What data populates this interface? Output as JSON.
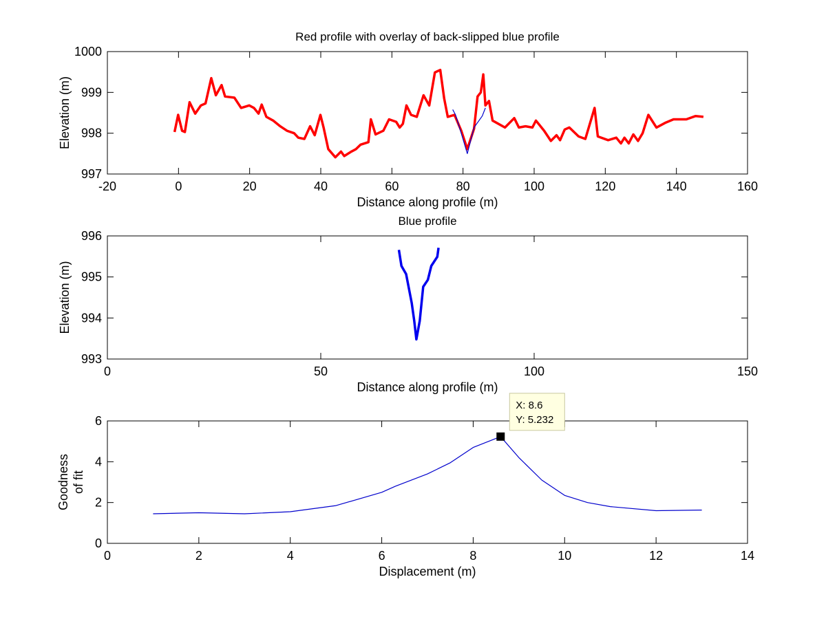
{
  "chart_data": [
    {
      "type": "line",
      "title": "Red profile with overlay of back-slipped blue profile",
      "xlabel": "Distance along profile (m)",
      "ylabel": "Elevation (m)",
      "xlim": [
        -20,
        160
      ],
      "ylim": [
        997,
        1000
      ],
      "xticks": [
        -20,
        0,
        20,
        40,
        60,
        80,
        100,
        120,
        140,
        160
      ],
      "yticks": [
        997,
        998,
        999,
        1000
      ],
      "grid": false,
      "series": [
        {
          "name": "red profile",
          "color": "#ff0000",
          "x": [
            -1.1,
            -0.1,
            1.0,
            1.8,
            3.1,
            4.7,
            6.3,
            7.6,
            9.2,
            10.5,
            12.1,
            13.1,
            15.7,
            17.6,
            19.9,
            21.2,
            22.5,
            23.4,
            24.7,
            26.6,
            28.6,
            30.5,
            32.5,
            33.7,
            35.4,
            37.0,
            38.3,
            39.9,
            40.8,
            42.1,
            44.1,
            45.7,
            46.6,
            48.6,
            49.9,
            51.2,
            53.4,
            54.1,
            55.4,
            57.6,
            59.2,
            61.2,
            62.2,
            63.1,
            64.1,
            65.4,
            67.0,
            68.9,
            70.5,
            72.1,
            73.6,
            74.7,
            75.7,
            77.6,
            79.5,
            81.2,
            83.1,
            84.1,
            85.0,
            85.7,
            86.3,
            87.3,
            88.3,
            91.8,
            94.4,
            95.7,
            97.6,
            99.5,
            100.5,
            102.8,
            104.7,
            106.3,
            107.3,
            108.6,
            109.9,
            112.5,
            114.4,
            117.0,
            117.9,
            120.8,
            123.1,
            124.4,
            125.4,
            126.6,
            127.9,
            129.2,
            130.5,
            132.1,
            134.4,
            137.0,
            139.2,
            142.8,
            145.4,
            147.6
          ],
          "y": [
            998.03,
            998.45,
            998.06,
            998.03,
            998.76,
            998.48,
            998.68,
            998.73,
            999.35,
            998.93,
            999.18,
            998.9,
            998.87,
            998.62,
            998.68,
            998.62,
            998.48,
            998.7,
            998.4,
            998.31,
            998.17,
            998.06,
            998.0,
            997.89,
            997.86,
            998.17,
            997.95,
            998.45,
            998.14,
            997.61,
            997.41,
            997.55,
            997.44,
            997.55,
            997.61,
            997.72,
            997.78,
            998.34,
            997.97,
            998.06,
            998.34,
            998.28,
            998.14,
            998.23,
            998.68,
            998.45,
            998.4,
            998.93,
            998.68,
            999.49,
            999.55,
            998.85,
            998.4,
            998.45,
            998.06,
            997.61,
            998.11,
            998.9,
            999.0,
            999.44,
            998.68,
            998.79,
            998.31,
            998.14,
            998.37,
            998.14,
            998.17,
            998.14,
            998.31,
            998.06,
            997.81,
            997.95,
            997.83,
            998.09,
            998.14,
            997.92,
            997.86,
            998.62,
            997.92,
            997.83,
            997.89,
            997.75,
            997.89,
            997.75,
            997.97,
            997.81,
            998.0,
            998.45,
            998.14,
            998.26,
            998.34,
            998.34,
            998.42,
            998.4
          ]
        },
        {
          "name": "back-slipped blue profile",
          "color": "#0000cc",
          "x": [
            77.1,
            77.9,
            79.5,
            81.2,
            83.1,
            85.4,
            86.3
          ],
          "y": [
            998.58,
            998.45,
            998.0,
            997.5,
            998.14,
            998.42,
            998.62
          ]
        }
      ]
    },
    {
      "type": "line",
      "title": "Blue profile",
      "xlabel": "Distance along profile (m)",
      "ylabel": "Elevation (m)",
      "xlim": [
        0,
        150
      ],
      "ylim": [
        993,
        996
      ],
      "xticks": [
        0,
        50,
        100,
        150
      ],
      "yticks": [
        993,
        994,
        995,
        996
      ],
      "grid": false,
      "series": [
        {
          "name": "blue profile",
          "color": "#0000ee",
          "x": [
            68.3,
            68.9,
            70.0,
            71.3,
            71.9,
            72.4,
            73.2,
            74.0,
            75.1,
            75.9,
            77.3,
            77.6
          ],
          "y": [
            995.66,
            995.27,
            995.07,
            994.37,
            993.93,
            993.48,
            993.93,
            994.76,
            994.93,
            995.27,
            995.49,
            995.71
          ]
        }
      ]
    },
    {
      "type": "line",
      "title": "",
      "xlabel": "Displacement (m)",
      "ylabel": [
        "Goodness",
        "of fit"
      ],
      "xlim": [
        0,
        14
      ],
      "ylim": [
        0,
        6
      ],
      "xticks": [
        0,
        2,
        4,
        6,
        8,
        10,
        12,
        14
      ],
      "yticks": [
        0,
        2,
        4,
        6
      ],
      "grid": false,
      "series": [
        {
          "name": "goodness of fit",
          "color": "#0000cc",
          "x": [
            1,
            2,
            3,
            4,
            5,
            6,
            6.3,
            7,
            7.5,
            8,
            8.6,
            9,
            9.5,
            10,
            10.5,
            11,
            12,
            13
          ],
          "y": [
            1.45,
            1.5,
            1.45,
            1.55,
            1.85,
            2.5,
            2.8,
            3.4,
            3.95,
            4.7,
            5.232,
            4.2,
            3.1,
            2.35,
            2.0,
            1.8,
            1.6,
            1.63
          ]
        }
      ],
      "datatip": {
        "x": 8.6,
        "y": 5.232,
        "x_label": "X: 8.6",
        "y_label": "Y: 5.232"
      }
    }
  ]
}
